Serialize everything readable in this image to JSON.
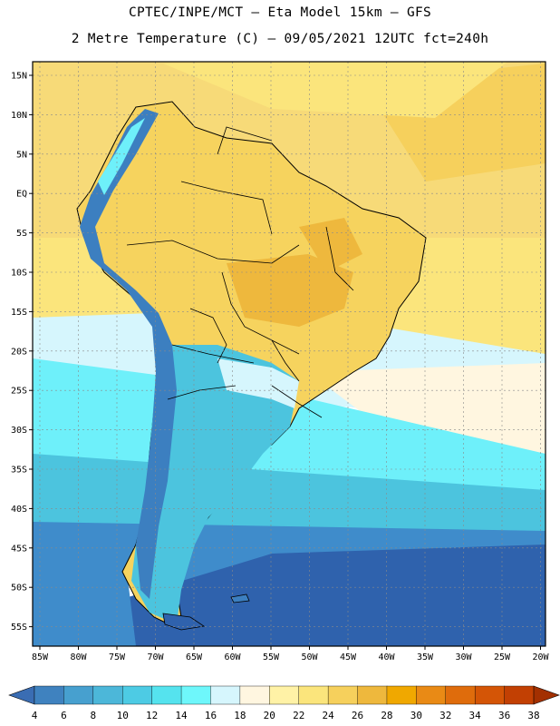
{
  "header": {
    "line1": "CPTEC/INPE/MCT –  Eta Model 15km – GFS",
    "line2": "2 Metre Temperature (C) – 09/05/2021 12UTC fct=240h"
  },
  "axes": {
    "lat_labels": [
      "15N",
      "10N",
      "5N",
      "EQ",
      "5S",
      "10S",
      "15S",
      "20S",
      "25S",
      "30S",
      "35S",
      "40S",
      "45S",
      "50S",
      "55S"
    ],
    "lon_labels": [
      "85W",
      "80W",
      "75W",
      "70W",
      "65W",
      "60W",
      "55W",
      "50W",
      "45W",
      "40W",
      "35W",
      "30W",
      "25W",
      "20W"
    ]
  },
  "colorbar": {
    "labels": [
      "4",
      "6",
      "8",
      "10",
      "12",
      "14",
      "16",
      "18",
      "20",
      "22",
      "24",
      "26",
      "28",
      "30",
      "32",
      "34",
      "36",
      "38"
    ],
    "colors": [
      "#3a6db3",
      "#3f82bf",
      "#47a0cf",
      "#4cb7d9",
      "#4dcbe4",
      "#55e3ee",
      "#6ef7fb",
      "#d6f6fd",
      "#fff6e0",
      "#fff2a6",
      "#fbe57c",
      "#f6d05c",
      "#eeb83d",
      "#f0a800",
      "#e98a15",
      "#df6c0c",
      "#d45506",
      "#c24003",
      "#a33001"
    ]
  },
  "map": {
    "colors": {
      "ocean_cold": "#2f62ad",
      "ocean_cool": "#3f8ccb",
      "ocean_mild": "#4cc4de",
      "ocean_warm": "#6ef0fa",
      "ocean_tepid": "#d6f6fd",
      "tropic_sea": "#f7da78",
      "land_warm": "#f6d35e",
      "land_hot": "#eeb83d",
      "andes": "#3c7fc0",
      "coast": "#000000"
    }
  }
}
